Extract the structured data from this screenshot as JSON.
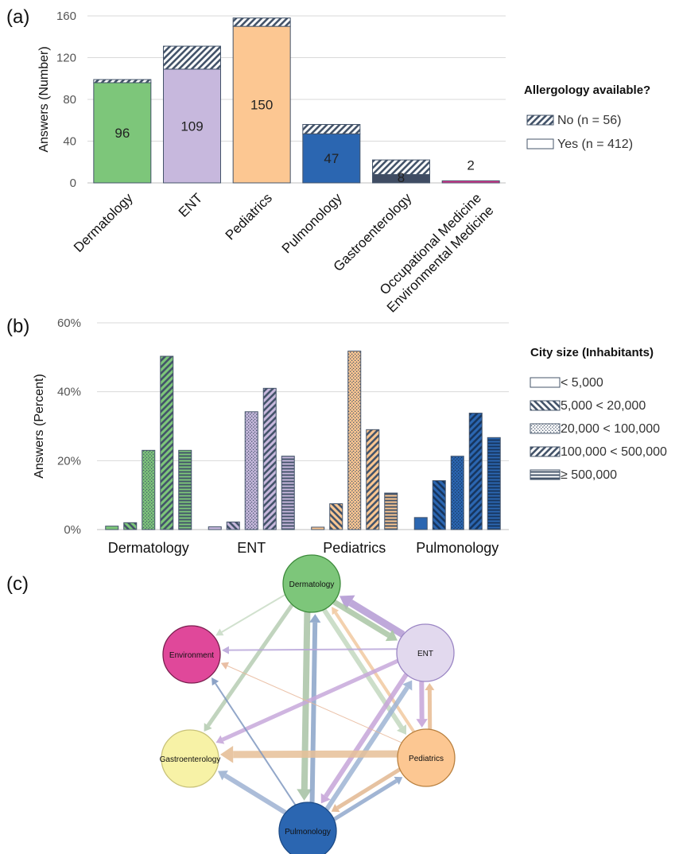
{
  "panel_labels": {
    "a": "(a)",
    "b": "(b)",
    "c": "(c)"
  },
  "colors": {
    "Dermatology": "#7dc67a",
    "ENT": "#c7b8dd",
    "Pediatrics": "#fcc792",
    "Pulmonology": "#2b66b1",
    "Gastroenterology": "#3f4c63",
    "Environmental": "#e0338f",
    "no_pattern": "#44546a"
  },
  "chart_data": [
    {
      "id": "a",
      "type": "bar",
      "stacked": true,
      "ylabel": "Answers (Number)",
      "ylim": [
        0,
        160
      ],
      "yticks": [
        0,
        40,
        80,
        120,
        160
      ],
      "grid": true,
      "categories": [
        {
          "key": "Dermatology",
          "lines": [
            "Dermatology"
          ]
        },
        {
          "key": "ENT",
          "lines": [
            "ENT"
          ]
        },
        {
          "key": "Pediatrics",
          "lines": [
            "Pediatrics"
          ]
        },
        {
          "key": "Pulmonology",
          "lines": [
            "Pulmonology"
          ]
        },
        {
          "key": "Gastroenterology",
          "lines": [
            "Gastroenterology"
          ]
        },
        {
          "key": "Environmental",
          "lines": [
            "Occupational Medicine",
            "Environmental Medicine"
          ]
        }
      ],
      "series": [
        {
          "name": "Yes (n = 412)",
          "values": [
            96,
            109,
            150,
            47,
            8,
            2
          ]
        },
        {
          "name": "No (n = 56)",
          "values": [
            3,
            22,
            8,
            9,
            14,
            0
          ]
        }
      ],
      "data_labels": [
        "96",
        "109",
        "150",
        "47",
        "8",
        "2"
      ],
      "legend": {
        "title": "Allergology available?",
        "position": "right",
        "entries": [
          "No (n = 56)",
          "Yes (n = 412)"
        ]
      }
    },
    {
      "id": "b",
      "type": "bar",
      "ylabel": "Answers (Percent)",
      "ylim": [
        0,
        60
      ],
      "yticks": [
        0,
        20,
        40,
        60
      ],
      "ytick_labels": [
        "0%",
        "20%",
        "40%",
        "60%"
      ],
      "grid": true,
      "categories": [
        "Dermatology",
        "ENT",
        "Pediatrics",
        "Pulmonology"
      ],
      "series": [
        {
          "name": "< 5,000",
          "values": [
            1.0,
            0.8,
            0.7,
            3.5
          ]
        },
        {
          "name": "5,000 < 20,000",
          "values": [
            2.0,
            2.2,
            7.5,
            14.2
          ]
        },
        {
          "name": "20,000 < 100,000",
          "values": [
            23.0,
            34.2,
            51.8,
            21.3
          ]
        },
        {
          "name": "100,000 < 500,000",
          "values": [
            50.3,
            41.0,
            29.0,
            33.8
          ]
        },
        {
          "name": "≥ 500,000",
          "values": [
            23.0,
            21.3,
            10.6,
            26.7
          ]
        }
      ],
      "legend": {
        "title": "City size (Inhabitants)",
        "position": "right"
      }
    },
    {
      "id": "c",
      "type": "network",
      "nodes": [
        {
          "id": "Dermatology",
          "label": "Dermatology",
          "color": "#7dc67a"
        },
        {
          "id": "ENT",
          "label": "ENT",
          "color": "#e2d9ee"
        },
        {
          "id": "Environment",
          "label": "Environment",
          "color": "#e0489a"
        },
        {
          "id": "Pediatrics",
          "label": "Pediatrics",
          "color": "#fcc792"
        },
        {
          "id": "Gastroenterology",
          "label": "Gastroenterology",
          "color": "#f7f2a6"
        },
        {
          "id": "Pulmonology",
          "label": "Pulmonology",
          "color": "#2b66b1"
        }
      ],
      "edges": [
        {
          "from": "ENT",
          "to": "Dermatology",
          "weight": 9,
          "color": "#b49ad4"
        },
        {
          "from": "Dermatology",
          "to": "ENT",
          "weight": 7,
          "color": "#a9c6a4"
        },
        {
          "from": "Dermatology",
          "to": "Environment",
          "weight": 2,
          "color": "#c9dcc6"
        },
        {
          "from": "Dermatology",
          "to": "Gastroenterology",
          "weight": 5,
          "color": "#b6cdb3"
        },
        {
          "from": "Dermatology",
          "to": "Pulmonology",
          "weight": 8,
          "color": "#a9c3a6"
        },
        {
          "from": "Pulmonology",
          "to": "Dermatology",
          "weight": 6,
          "color": "#8aa3c8"
        },
        {
          "from": "Dermatology",
          "to": "Pediatrics",
          "weight": 6,
          "color": "#c3d8c0"
        },
        {
          "from": "Pediatrics",
          "to": "Dermatology",
          "weight": 4,
          "color": "#f1c9a0"
        },
        {
          "from": "ENT",
          "to": "Environment",
          "weight": 2,
          "color": "#b9a6d9"
        },
        {
          "from": "ENT",
          "to": "Gastroenterology",
          "weight": 5,
          "color": "#c7a8da"
        },
        {
          "from": "ENT",
          "to": "Pediatrics",
          "weight": 6,
          "color": "#c6a4d8"
        },
        {
          "from": "Pediatrics",
          "to": "ENT",
          "weight": 5,
          "color": "#e8bb92"
        },
        {
          "from": "ENT",
          "to": "Pulmonology",
          "weight": 6,
          "color": "#c6a4d8"
        },
        {
          "from": "Pulmonology",
          "to": "ENT",
          "weight": 6,
          "color": "#9eb4d4"
        },
        {
          "from": "Pediatrics",
          "to": "Environment",
          "weight": 1,
          "color": "#e7b79a"
        },
        {
          "from": "Pediatrics",
          "to": "Gastroenterology",
          "weight": 9,
          "color": "#e6bf98"
        },
        {
          "from": "Pediatrics",
          "to": "Pulmonology",
          "weight": 5,
          "color": "#e2b791"
        },
        {
          "from": "Pulmonology",
          "to": "Pediatrics",
          "weight": 5,
          "color": "#90a8cc"
        },
        {
          "from": "Pulmonology",
          "to": "Environment",
          "weight": 2,
          "color": "#7f98c0"
        },
        {
          "from": "Pulmonology",
          "to": "Gastroenterology",
          "weight": 6,
          "color": "#9db2d2"
        }
      ]
    }
  ]
}
